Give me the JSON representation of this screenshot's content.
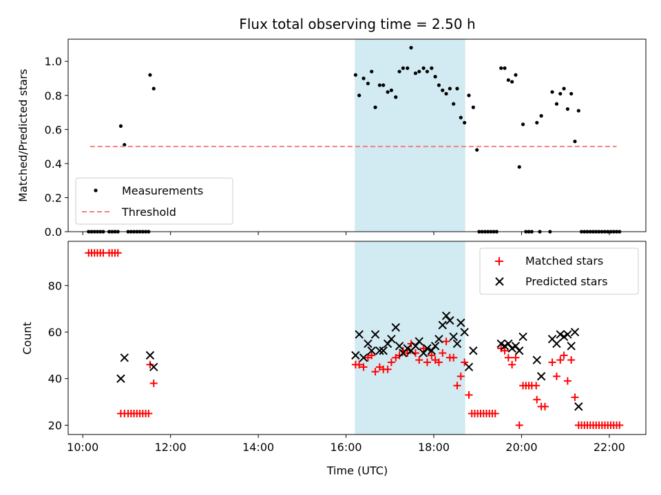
{
  "colors": {
    "measurement": "#000000",
    "threshold": "#f08080",
    "matched": "#ff0000",
    "predicted": "#000000",
    "shade": "#add8e6"
  },
  "chart_data": [
    {
      "type": "scatter",
      "title": "Flux total observing time = 2.50 h",
      "xlabel": "",
      "ylabel": "Matched/Predicted stars",
      "xlim": [
        "09:40",
        "22:50"
      ],
      "ylim": [
        0,
        1.13
      ],
      "yticks": [
        "0.0",
        "0.2",
        "0.4",
        "0.6",
        "0.8",
        "1.0"
      ],
      "shaded_span": [
        "16:12",
        "18:43"
      ],
      "legend": "lower-left",
      "series": [
        {
          "name": "Measurements",
          "marker": "dot",
          "points": [
            [
              "10:08",
              0
            ],
            [
              "10:12",
              0
            ],
            [
              "10:16",
              0
            ],
            [
              "10:20",
              0
            ],
            [
              "10:24",
              0
            ],
            [
              "10:28",
              0
            ],
            [
              "10:36",
              0
            ],
            [
              "10:40",
              0
            ],
            [
              "10:44",
              0
            ],
            [
              "10:48",
              0
            ],
            [
              "10:52",
              0.62
            ],
            [
              "10:57",
              0.51
            ],
            [
              "11:02",
              0
            ],
            [
              "11:06",
              0
            ],
            [
              "11:10",
              0
            ],
            [
              "11:14",
              0
            ],
            [
              "11:18",
              0
            ],
            [
              "11:22",
              0
            ],
            [
              "11:26",
              0
            ],
            [
              "11:30",
              0
            ],
            [
              "11:32",
              0.92
            ],
            [
              "11:37",
              0.84
            ],
            [
              "16:13",
              0.92
            ],
            [
              "16:18",
              0.8
            ],
            [
              "16:24",
              0.9
            ],
            [
              "16:30",
              0.87
            ],
            [
              "16:35",
              0.94
            ],
            [
              "16:40",
              0.73
            ],
            [
              "16:46",
              0.86
            ],
            [
              "16:51",
              0.86
            ],
            [
              "16:57",
              0.82
            ],
            [
              "17:02",
              0.83
            ],
            [
              "17:08",
              0.79
            ],
            [
              "17:13",
              0.94
            ],
            [
              "17:18",
              0.96
            ],
            [
              "17:24",
              0.96
            ],
            [
              "17:29",
              1.08
            ],
            [
              "17:35",
              0.93
            ],
            [
              "17:40",
              0.94
            ],
            [
              "17:46",
              0.96
            ],
            [
              "17:51",
              0.94
            ],
            [
              "17:57",
              0.96
            ],
            [
              "18:02",
              0.91
            ],
            [
              "18:07",
              0.86
            ],
            [
              "18:12",
              0.83
            ],
            [
              "18:17",
              0.81
            ],
            [
              "18:22",
              0.84
            ],
            [
              "18:27",
              0.75
            ],
            [
              "18:32",
              0.84
            ],
            [
              "18:37",
              0.67
            ],
            [
              "18:42",
              0.64
            ],
            [
              "18:48",
              0.8
            ],
            [
              "18:54",
              0.73
            ],
            [
              "18:59",
              0.48
            ],
            [
              "19:02",
              0
            ],
            [
              "19:06",
              0
            ],
            [
              "19:10",
              0
            ],
            [
              "19:14",
              0
            ],
            [
              "19:18",
              0
            ],
            [
              "19:22",
              0
            ],
            [
              "19:26",
              0
            ],
            [
              "19:32",
              0.96
            ],
            [
              "19:37",
              0.96
            ],
            [
              "19:42",
              0.89
            ],
            [
              "19:47",
              0.88
            ],
            [
              "19:52",
              0.92
            ],
            [
              "19:57",
              0.38
            ],
            [
              "20:02",
              0.63
            ],
            [
              "20:06",
              0
            ],
            [
              "20:10",
              0
            ],
            [
              "20:14",
              0
            ],
            [
              "20:25",
              0
            ],
            [
              "20:21",
              0.64
            ],
            [
              "20:27",
              0.68
            ],
            [
              "20:39",
              0
            ],
            [
              "20:42",
              0.82
            ],
            [
              "20:48",
              0.75
            ],
            [
              "20:53",
              0.81
            ],
            [
              "20:58",
              0.84
            ],
            [
              "21:03",
              0.72
            ],
            [
              "21:08",
              0.81
            ],
            [
              "21:13",
              0.53
            ],
            [
              "21:18",
              0.71
            ],
            [
              "21:22",
              0
            ],
            [
              "21:26",
              0
            ],
            [
              "21:30",
              0
            ],
            [
              "21:34",
              0
            ],
            [
              "21:38",
              0
            ],
            [
              "21:42",
              0
            ],
            [
              "21:46",
              0
            ],
            [
              "21:50",
              0
            ],
            [
              "21:54",
              0
            ],
            [
              "21:58",
              0
            ],
            [
              "22:02",
              0
            ],
            [
              "22:06",
              0
            ],
            [
              "22:10",
              0
            ],
            [
              "22:14",
              0
            ]
          ]
        },
        {
          "name": "Threshold",
          "style": "dashed",
          "points": [
            [
              "10:10",
              0.5
            ],
            [
              "22:10",
              0.5
            ]
          ]
        }
      ]
    },
    {
      "type": "scatter",
      "xlabel": "Time (UTC)",
      "ylabel": "Count",
      "xlim": [
        "09:40",
        "22:50"
      ],
      "ylim": [
        16,
        99
      ],
      "yticks": [
        "20",
        "40",
        "60",
        "80"
      ],
      "xticks": [
        "10:00",
        "12:00",
        "14:00",
        "16:00",
        "18:00",
        "20:00",
        "22:00"
      ],
      "shaded_span": [
        "16:12",
        "18:43"
      ],
      "legend": "top-right",
      "series": [
        {
          "name": "Matched stars",
          "marker": "plus",
          "points": [
            [
              "10:08",
              94
            ],
            [
              "10:12",
              94
            ],
            [
              "10:16",
              94
            ],
            [
              "10:20",
              94
            ],
            [
              "10:24",
              94
            ],
            [
              "10:28",
              94
            ],
            [
              "10:36",
              94
            ],
            [
              "10:40",
              94
            ],
            [
              "10:44",
              94
            ],
            [
              "10:48",
              94
            ],
            [
              "10:52",
              25
            ],
            [
              "10:57",
              25
            ],
            [
              "11:02",
              25
            ],
            [
              "11:06",
              25
            ],
            [
              "11:10",
              25
            ],
            [
              "11:14",
              25
            ],
            [
              "11:18",
              25
            ],
            [
              "11:22",
              25
            ],
            [
              "11:26",
              25
            ],
            [
              "11:30",
              25
            ],
            [
              "11:32",
              46
            ],
            [
              "11:37",
              38
            ],
            [
              "16:13",
              46
            ],
            [
              "16:18",
              46
            ],
            [
              "16:24",
              45
            ],
            [
              "16:30",
              49
            ],
            [
              "16:35",
              50
            ],
            [
              "16:40",
              43
            ],
            [
              "16:46",
              45
            ],
            [
              "16:51",
              44
            ],
            [
              "16:57",
              44
            ],
            [
              "17:02",
              47
            ],
            [
              "17:08",
              49
            ],
            [
              "17:13",
              50
            ],
            [
              "17:18",
              52
            ],
            [
              "17:24",
              51
            ],
            [
              "17:29",
              55
            ],
            [
              "17:35",
              51
            ],
            [
              "17:40",
              48
            ],
            [
              "17:46",
              53
            ],
            [
              "17:51",
              47
            ],
            [
              "17:57",
              50
            ],
            [
              "18:02",
              48
            ],
            [
              "18:07",
              47
            ],
            [
              "18:12",
              51
            ],
            [
              "18:17",
              56
            ],
            [
              "18:22",
              49
            ],
            [
              "18:27",
              49
            ],
            [
              "18:32",
              37
            ],
            [
              "18:37",
              41
            ],
            [
              "18:42",
              47
            ],
            [
              "18:48",
              33
            ],
            [
              "18:52",
              25
            ],
            [
              "18:56",
              25
            ],
            [
              "19:00",
              25
            ],
            [
              "19:04",
              25
            ],
            [
              "19:08",
              25
            ],
            [
              "19:12",
              25
            ],
            [
              "19:16",
              25
            ],
            [
              "19:20",
              25
            ],
            [
              "19:24",
              25
            ],
            [
              "19:32",
              53
            ],
            [
              "19:37",
              52
            ],
            [
              "19:42",
              49
            ],
            [
              "19:47",
              46
            ],
            [
              "19:52",
              49
            ],
            [
              "19:57",
              20
            ],
            [
              "20:02",
              37
            ],
            [
              "20:06",
              37
            ],
            [
              "20:10",
              37
            ],
            [
              "20:14",
              37
            ],
            [
              "20:20",
              37
            ],
            [
              "20:21",
              31
            ],
            [
              "20:27",
              28
            ],
            [
              "20:32",
              28
            ],
            [
              "20:42",
              47
            ],
            [
              "20:48",
              41
            ],
            [
              "20:53",
              48
            ],
            [
              "20:58",
              50
            ],
            [
              "21:03",
              39
            ],
            [
              "21:08",
              48
            ],
            [
              "21:13",
              32
            ],
            [
              "21:18",
              20
            ],
            [
              "21:22",
              20
            ],
            [
              "21:26",
              20
            ],
            [
              "21:30",
              20
            ],
            [
              "21:34",
              20
            ],
            [
              "21:38",
              20
            ],
            [
              "21:42",
              20
            ],
            [
              "21:46",
              20
            ],
            [
              "21:50",
              20
            ],
            [
              "21:54",
              20
            ],
            [
              "21:58",
              20
            ],
            [
              "22:02",
              20
            ],
            [
              "22:06",
              20
            ],
            [
              "22:10",
              20
            ],
            [
              "22:14",
              20
            ]
          ]
        },
        {
          "name": "Predicted stars",
          "marker": "cross",
          "points": [
            [
              "10:52",
              40
            ],
            [
              "10:57",
              49
            ],
            [
              "11:32",
              50
            ],
            [
              "11:37",
              45
            ],
            [
              "16:13",
              50
            ],
            [
              "16:18",
              59
            ],
            [
              "16:24",
              49
            ],
            [
              "16:30",
              55
            ],
            [
              "16:35",
              52
            ],
            [
              "16:40",
              59
            ],
            [
              "16:46",
              52
            ],
            [
              "16:51",
              52
            ],
            [
              "16:57",
              55
            ],
            [
              "17:02",
              57
            ],
            [
              "17:08",
              62
            ],
            [
              "17:13",
              54
            ],
            [
              "17:18",
              51
            ],
            [
              "17:24",
              53
            ],
            [
              "17:29",
              52
            ],
            [
              "17:35",
              54
            ],
            [
              "17:40",
              56
            ],
            [
              "17:46",
              51
            ],
            [
              "17:51",
              53
            ],
            [
              "17:57",
              52
            ],
            [
              "18:02",
              54
            ],
            [
              "18:07",
              57
            ],
            [
              "18:12",
              63
            ],
            [
              "18:17",
              67
            ],
            [
              "18:22",
              65
            ],
            [
              "18:27",
              58
            ],
            [
              "18:32",
              55
            ],
            [
              "18:37",
              64
            ],
            [
              "18:42",
              60
            ],
            [
              "18:48",
              45
            ],
            [
              "18:54",
              52
            ],
            [
              "19:32",
              55
            ],
            [
              "19:37",
              54
            ],
            [
              "19:42",
              55
            ],
            [
              "19:47",
              53
            ],
            [
              "19:52",
              54
            ],
            [
              "19:57",
              52
            ],
            [
              "20:02",
              58
            ],
            [
              "20:21",
              48
            ],
            [
              "20:27",
              41
            ],
            [
              "20:42",
              57
            ],
            [
              "20:48",
              55
            ],
            [
              "20:53",
              59
            ],
            [
              "20:58",
              58
            ],
            [
              "21:03",
              59
            ],
            [
              "21:08",
              54
            ],
            [
              "21:13",
              60
            ],
            [
              "21:18",
              28
            ]
          ]
        }
      ]
    }
  ]
}
